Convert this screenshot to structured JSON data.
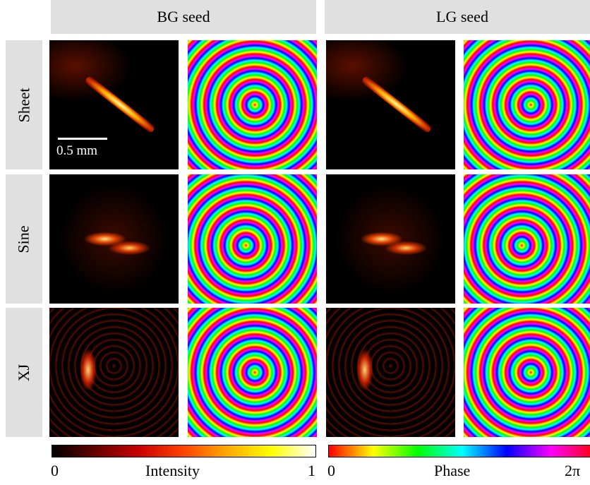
{
  "header": {
    "columns": [
      "BG seed",
      "LG seed"
    ]
  },
  "rows": [
    "Sheet",
    "Sine",
    "XJ"
  ],
  "scale_bar": "0.5 mm",
  "colorbars": [
    {
      "min": 0,
      "label": "Intensity",
      "max": 1
    },
    {
      "min": 0,
      "label": "Phase",
      "max": "2π"
    }
  ]
}
